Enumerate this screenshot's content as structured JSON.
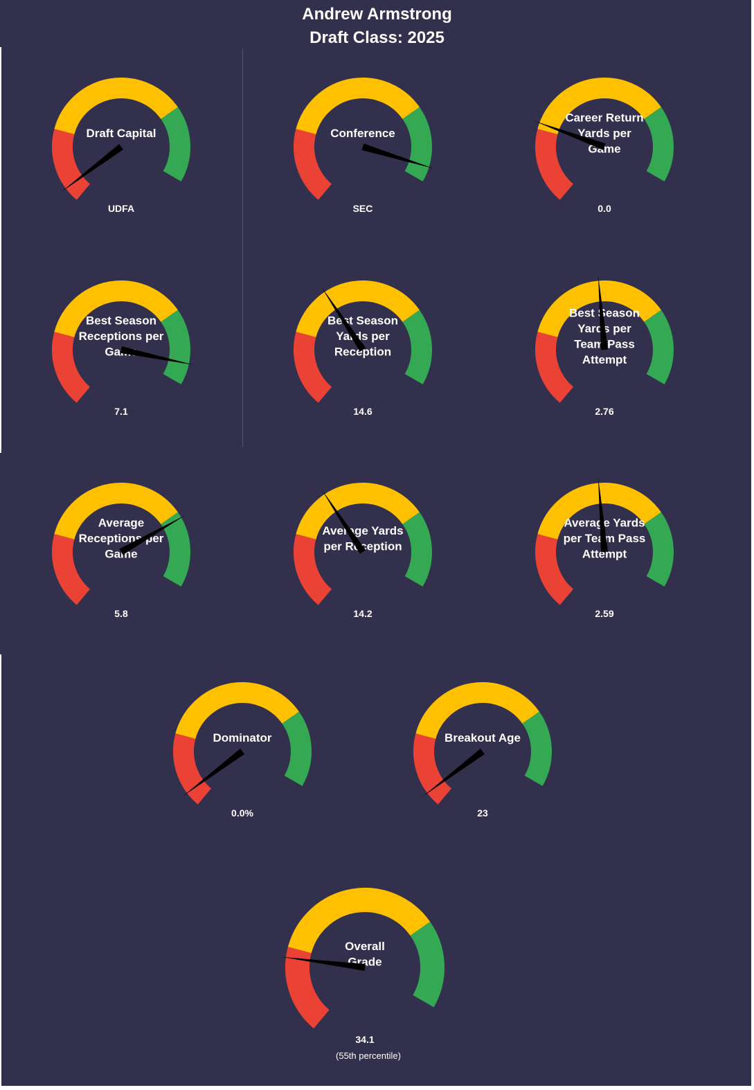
{
  "header": {
    "player_name": "Andrew Armstrong",
    "draft_class": "Draft Class: 2025"
  },
  "colors": {
    "background": "#32304C",
    "low": "#EA4335",
    "mid": "#FFC000",
    "high": "#34A853",
    "needle": "#000000",
    "text": "#FFFFFF"
  },
  "chart_data": [
    {
      "type": "gauge",
      "label": [
        "Draft Capital"
      ],
      "value_text": "UDFA",
      "needle_fraction": 0.05
    },
    {
      "type": "gauge",
      "label": [
        "Conference"
      ],
      "value_text": "SEC",
      "needle_fraction": 0.95
    },
    {
      "type": "gauge",
      "label": [
        "Career Return",
        "Yards per",
        "Game"
      ],
      "value_text": "0.0",
      "needle_fraction": 0.27
    },
    {
      "type": "gauge",
      "label": [
        "Best Season",
        "Receptions per",
        "Game"
      ],
      "value_text": "7.1",
      "needle_fraction": 0.93
    },
    {
      "type": "gauge",
      "label": [
        "Best Season",
        "Yards per",
        "Reception"
      ],
      "value_text": "14.6",
      "needle_fraction": 0.41
    },
    {
      "type": "gauge",
      "label": [
        "Best Season",
        "Yards per",
        "Team Pass",
        "Attempt"
      ],
      "value_text": "2.76",
      "needle_fraction": 0.52
    },
    {
      "type": "gauge",
      "label": [
        "Average",
        "Receptions per",
        "Game"
      ],
      "value_text": "5.8",
      "needle_fraction": 0.77
    },
    {
      "type": "gauge",
      "label": [
        "Average Yards",
        "per Reception"
      ],
      "value_text": "14.2",
      "needle_fraction": 0.41
    },
    {
      "type": "gauge",
      "label": [
        "Average Yards",
        "per Team Pass",
        "Attempt"
      ],
      "value_text": "2.59",
      "needle_fraction": 0.52
    },
    {
      "type": "gauge",
      "label": [
        "Dominator"
      ],
      "value_text": "0.0%",
      "needle_fraction": 0.05
    },
    {
      "type": "gauge",
      "label": [
        "Breakout Age"
      ],
      "value_text": "23",
      "needle_fraction": 0.05
    },
    {
      "type": "gauge",
      "label": [
        "Overall",
        "Grade"
      ],
      "value_text": "34.1",
      "subtext": "(55th  percentile)",
      "needle_fraction": 0.22
    }
  ]
}
